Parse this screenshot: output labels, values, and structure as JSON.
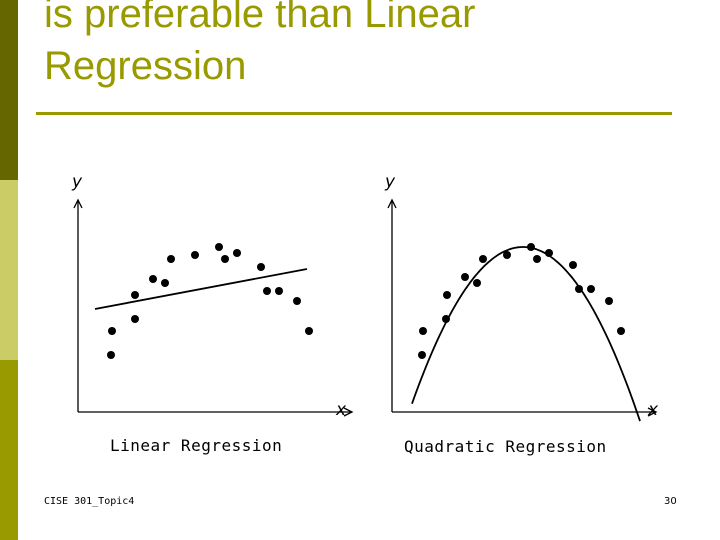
{
  "slide": {
    "title_line1": "is preferable than Linear",
    "title_line2": "Regression",
    "footer_left": "CISE 301_Topic4",
    "page_number": "30"
  },
  "colors": {
    "title": "#999900",
    "sidebar": [
      "#666600",
      "#cccc66",
      "#999900"
    ]
  },
  "chart_data": [
    {
      "type": "scatter",
      "title": "",
      "caption": "Linear Regression",
      "xlabel": "x",
      "ylabel": "y",
      "xlim": [
        0,
        280
      ],
      "ylim": [
        0,
        210
      ],
      "fit": "linear",
      "points": [
        {
          "x": 33,
          "y": 57
        },
        {
          "x": 34,
          "y": 81
        },
        {
          "x": 57,
          "y": 93
        },
        {
          "x": 57,
          "y": 117
        },
        {
          "x": 75,
          "y": 133
        },
        {
          "x": 87,
          "y": 129
        },
        {
          "x": 93,
          "y": 153
        },
        {
          "x": 117,
          "y": 157
        },
        {
          "x": 141,
          "y": 165
        },
        {
          "x": 147,
          "y": 153
        },
        {
          "x": 159,
          "y": 159
        },
        {
          "x": 183,
          "y": 145
        },
        {
          "x": 189,
          "y": 121
        },
        {
          "x": 201,
          "y": 121
        },
        {
          "x": 219,
          "y": 111
        },
        {
          "x": 231,
          "y": 81
        }
      ],
      "fit_line": {
        "x": [
          17,
          229
        ],
        "y": [
          103,
          143
        ]
      }
    },
    {
      "type": "scatter",
      "title": "",
      "caption": "Quadratic Regression",
      "xlabel": "x",
      "ylabel": "y",
      "xlim": [
        0,
        265
      ],
      "ylim": [
        0,
        210
      ],
      "fit": "quadratic",
      "points": [
        {
          "x": 30,
          "y": 57
        },
        {
          "x": 31,
          "y": 81
        },
        {
          "x": 54,
          "y": 93
        },
        {
          "x": 55,
          "y": 117
        },
        {
          "x": 73,
          "y": 135
        },
        {
          "x": 85,
          "y": 129
        },
        {
          "x": 91,
          "y": 153
        },
        {
          "x": 115,
          "y": 157
        },
        {
          "x": 139,
          "y": 165
        },
        {
          "x": 145,
          "y": 153
        },
        {
          "x": 157,
          "y": 159
        },
        {
          "x": 181,
          "y": 147
        },
        {
          "x": 187,
          "y": 123
        },
        {
          "x": 199,
          "y": 123
        },
        {
          "x": 217,
          "y": 111
        },
        {
          "x": 229,
          "y": 81
        }
      ],
      "fit_curve": {
        "a": -0.01272,
        "h": 131,
        "k": 165
      }
    }
  ]
}
